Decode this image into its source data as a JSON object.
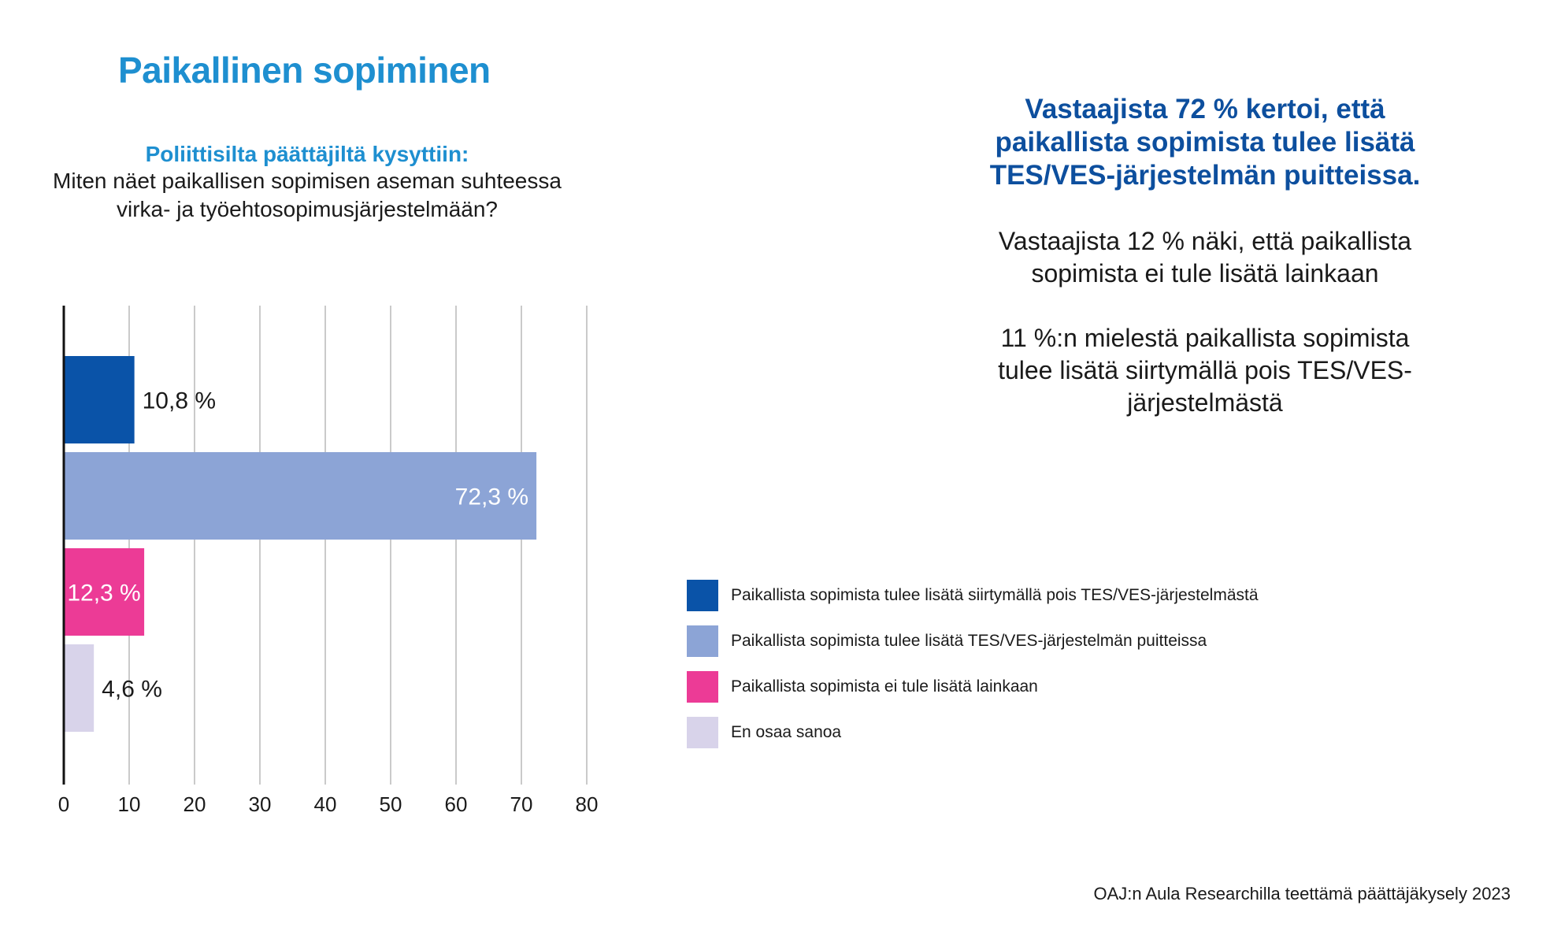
{
  "title": "Paikallinen sopiminen",
  "question": {
    "lead": "Poliittisilta päättäjiltä kysyttiin:",
    "line1": "Miten näet paikallisen sopimisen aseman suhteessa",
    "line2": "virka- ja työehtosopimusjärjestelmään?"
  },
  "summary": {
    "highlight": "Vastaajista 72 % kertoi, että paikallista sopimista tulee lisätä TES/VES-järjestelmän puitteissa.",
    "note1": "Vastaajista 12 % näki, että paikallista sopimista ei tule lisätä lainkaan",
    "note2": "11 %:n mielestä paikallista sopimista tulee lisätä siirtymällä pois TES/VES-järjestelmästä"
  },
  "legend": [
    {
      "label": "Paikallista sopimista tulee lisätä siirtymällä pois TES/VES-järjestelmästä",
      "color": "#0a53a8"
    },
    {
      "label": "Paikallista sopimista tulee lisätä TES/VES-järjestelmän puitteissa",
      "color": "#8ca4d6"
    },
    {
      "label": "Paikallista sopimista ei tule lisätä lainkaan",
      "color": "#ec3b96"
    },
    {
      "label": "En osaa sanoa",
      "color": "#d8d3ea"
    }
  ],
  "source": "OAJ:n Aula Researchilla teettämä päättäjäkysely 2023",
  "chart_data": {
    "type": "bar",
    "orientation": "horizontal",
    "title": "",
    "xlabel": "",
    "ylabel": "",
    "xlim": [
      0,
      80
    ],
    "xticks": [
      "0",
      "10",
      "20",
      "30",
      "40",
      "50",
      "60",
      "70",
      "80"
    ],
    "grid": true,
    "legend_position": "right",
    "categories": [
      "Paikallista sopimista tulee lisätä siirtymällä pois TES/VES-järjestelmästä",
      "Paikallista sopimista tulee lisätä TES/VES-järjestelmän puitteissa",
      "Paikallista sopimista ei tule lisätä lainkaan",
      "En osaa sanoa"
    ],
    "values": [
      10.8,
      72.3,
      12.3,
      4.6
    ],
    "labels": [
      "10,8 %",
      "72,3 %",
      "12,3 %",
      "4,6 %"
    ],
    "label_inside": [
      false,
      true,
      true,
      false
    ],
    "colors": [
      "#0a53a8",
      "#8ca4d6",
      "#ec3b96",
      "#d8d3ea"
    ]
  }
}
